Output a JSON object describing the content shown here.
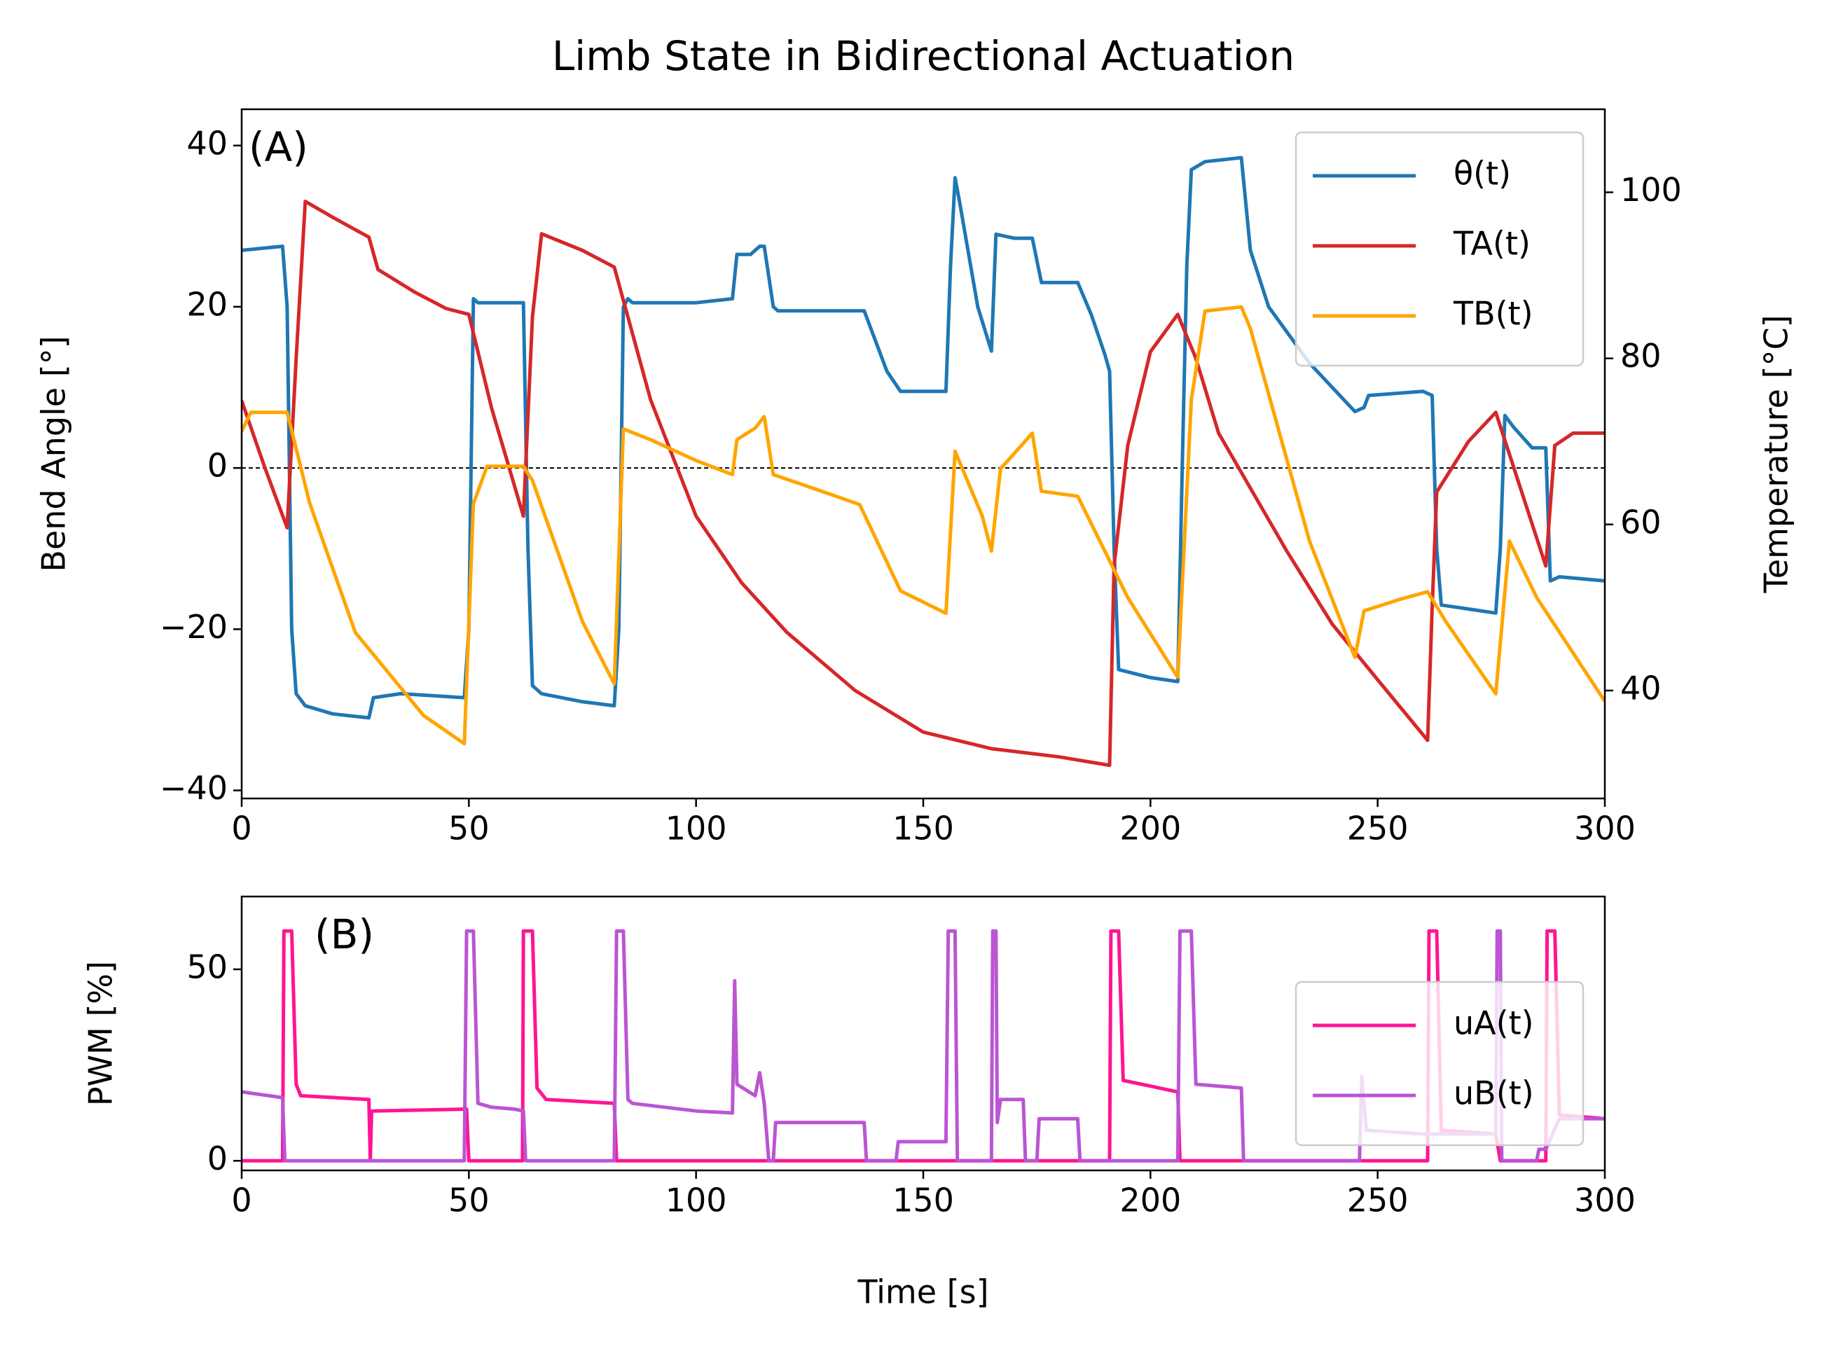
{
  "chart_data": [
    {
      "type": "line",
      "title": "Limb State in Bidirectional Actuation",
      "annotation": "(A)",
      "y_label": "Bend Angle [°]",
      "y_label_color": "#1f77b4",
      "y2_label": "Temperature [°C]",
      "y2_label_color": "#d62728",
      "xlim": [
        0,
        300
      ],
      "xticks": [
        0,
        50,
        100,
        150,
        200,
        250,
        300
      ],
      "ylim": [
        -41,
        44.5
      ],
      "yticks": [
        {
          "value": -40,
          "label": "−40"
        },
        {
          "value": -20,
          "label": "−20"
        },
        0,
        20,
        40
      ],
      "y2lim": [
        27,
        110
      ],
      "y2ticks": [
        40,
        60,
        80,
        100
      ],
      "hline": 0,
      "legend": "upper right",
      "series": [
        {
          "name": "θ(t)",
          "color": "#1f77b4",
          "x": [
            0,
            9,
            10,
            11,
            12,
            14,
            20,
            28,
            29,
            35,
            49,
            50,
            51,
            52,
            62,
            63,
            64,
            66,
            75,
            82,
            83,
            84,
            85,
            86,
            100,
            108,
            109,
            112,
            114,
            115,
            117,
            118,
            130,
            137,
            142,
            145,
            155,
            156,
            157,
            158,
            162,
            165,
            166,
            170,
            174,
            176,
            184,
            187,
            190,
            191,
            192,
            193,
            200,
            206,
            207,
            208,
            209,
            212,
            220,
            222,
            226,
            235,
            245,
            247,
            248,
            260,
            262,
            263,
            264,
            270,
            276,
            277,
            278,
            280,
            284,
            287,
            288,
            290,
            300
          ],
          "values": [
            27,
            27.5,
            20,
            -20,
            -28,
            -29.5,
            -30.5,
            -31,
            -28.5,
            -28,
            -28.5,
            -20,
            21,
            20.5,
            20.5,
            -10,
            -27,
            -28,
            -29,
            -29.5,
            -20,
            20,
            21,
            20.5,
            20.5,
            21,
            26.5,
            26.5,
            27.5,
            27.5,
            20,
            19.5,
            19.5,
            19.5,
            12,
            9.5,
            9.5,
            25,
            36,
            33,
            20,
            14.5,
            29,
            28.5,
            28.5,
            23,
            23,
            19,
            14,
            12,
            -10,
            -25,
            -26,
            -26.5,
            0,
            25,
            37,
            38,
            38.5,
            27,
            20,
            13,
            7,
            7.5,
            9,
            9.5,
            9,
            -10,
            -17,
            -17.5,
            -18,
            -10,
            6.5,
            5,
            2.5,
            2.5,
            -14,
            -13.5,
            -14
          ]
        },
        {
          "name": "TA(t)",
          "color": "#d62728",
          "axis": "y2",
          "x": [
            0,
            5,
            10,
            12,
            14,
            20,
            28,
            30,
            38,
            45,
            50,
            55,
            62,
            64,
            66,
            75,
            82,
            90,
            100,
            110,
            120,
            135,
            150,
            165,
            180,
            191,
            192,
            195,
            200,
            206,
            210,
            215,
            230,
            240,
            250,
            261,
            262,
            263,
            270,
            276,
            287,
            289,
            293,
            300
          ],
          "values": [
            74.9,
            67,
            59.6,
            80,
            98.9,
            97,
            94.6,
            90.7,
            88,
            86,
            85.3,
            74,
            61,
            85,
            95,
            93,
            91,
            75,
            61,
            53,
            47,
            40,
            35,
            33,
            32,
            31,
            55,
            69.5,
            80.8,
            85.3,
            80,
            71,
            56.8,
            48,
            41.3,
            34,
            50,
            63.9,
            70,
            73.5,
            55,
            69.5,
            71,
            71
          ]
        },
        {
          "name": "TB(t)",
          "color": "#ffa500",
          "axis": "y2",
          "x": [
            0,
            2,
            10,
            15,
            25,
            40,
            49,
            51,
            54,
            62,
            64,
            75,
            82,
            84,
            90,
            100,
            108,
            109,
            113,
            115,
            117,
            125,
            136,
            145,
            155,
            157,
            163,
            165,
            167,
            174,
            176,
            184,
            195,
            206,
            209,
            212,
            220,
            222,
            235,
            245,
            247,
            255,
            261,
            265,
            276,
            279,
            285,
            300
          ],
          "values": [
            71.2,
            73.5,
            73.5,
            62.5,
            47,
            37,
            33.6,
            62.5,
            67,
            67,
            65.3,
            48.3,
            40.8,
            71.5,
            70.2,
            67.7,
            66,
            70.2,
            71.6,
            73,
            66,
            64.5,
            62.4,
            52,
            49.3,
            68.8,
            61,
            56.8,
            66.7,
            71,
            64,
            63.4,
            51.2,
            41.6,
            75,
            85.7,
            86.2,
            83.6,
            58,
            44,
            49.6,
            51,
            51.9,
            48.3,
            39.6,
            58,
            51.2,
            38.7
          ]
        }
      ]
    },
    {
      "type": "line",
      "annotation": "(B)",
      "y_label": "PWM [%]",
      "x_label": "Time [s]",
      "xlim": [
        0,
        300
      ],
      "xticks": [
        0,
        50,
        100,
        150,
        200,
        250,
        300
      ],
      "ylim": [
        -2.5,
        69
      ],
      "yticks": [
        0,
        50
      ],
      "legend": "lower right",
      "series": [
        {
          "name": "uA(t)",
          "color": "#ff1493",
          "x": [
            0,
            9,
            9.3,
            11,
            12,
            13,
            28,
            28.3,
            28.6,
            49.5,
            50,
            61.8,
            62,
            64,
            65,
            67,
            82,
            82.5,
            191,
            191.3,
            193,
            194,
            206,
            206.5,
            261,
            261.3,
            263,
            264,
            276,
            277,
            287,
            287.3,
            289,
            290,
            300
          ],
          "values": [
            0,
            0,
            60,
            60,
            20,
            17,
            16,
            0,
            13,
            13.5,
            0,
            0,
            60,
            60,
            19,
            16,
            15,
            0,
            0,
            60,
            60,
            21,
            18,
            0,
            0,
            60,
            60,
            8,
            7,
            0,
            0,
            60,
            60,
            12,
            11
          ]
        },
        {
          "name": "uB(t)",
          "color": "#ba55d3",
          "x": [
            0,
            9,
            9.5,
            49,
            49.5,
            51,
            52,
            55,
            60,
            62,
            62.5,
            82,
            82.5,
            84,
            85,
            86,
            100,
            108,
            108.5,
            109,
            113,
            114,
            115,
            116,
            117,
            117.5,
            137,
            137.5,
            144,
            144.5,
            155,
            155.5,
            157,
            157.5,
            165,
            165.3,
            166,
            166.3,
            167,
            172,
            172.5,
            175,
            175.5,
            184,
            184.5,
            206,
            206.5,
            209,
            210,
            220,
            220.5,
            246,
            246.5,
            247.5,
            260,
            276,
            276.3,
            277,
            277.3,
            285,
            285.5,
            287,
            290,
            300
          ],
          "values": [
            18,
            16.5,
            0,
            0,
            60,
            60,
            15,
            14,
            13.5,
            13,
            0,
            0,
            60,
            60,
            16,
            15,
            13,
            12.5,
            47,
            20,
            17,
            23,
            15,
            0,
            0,
            10,
            10,
            0,
            0,
            5,
            5,
            60,
            60,
            0,
            0,
            60,
            60,
            10,
            16,
            16,
            0,
            0,
            11,
            11,
            0,
            0,
            60,
            60,
            20,
            19,
            0,
            0,
            22,
            8,
            7,
            7,
            60,
            60,
            0,
            0,
            3,
            3,
            11,
            11
          ]
        }
      ]
    }
  ]
}
